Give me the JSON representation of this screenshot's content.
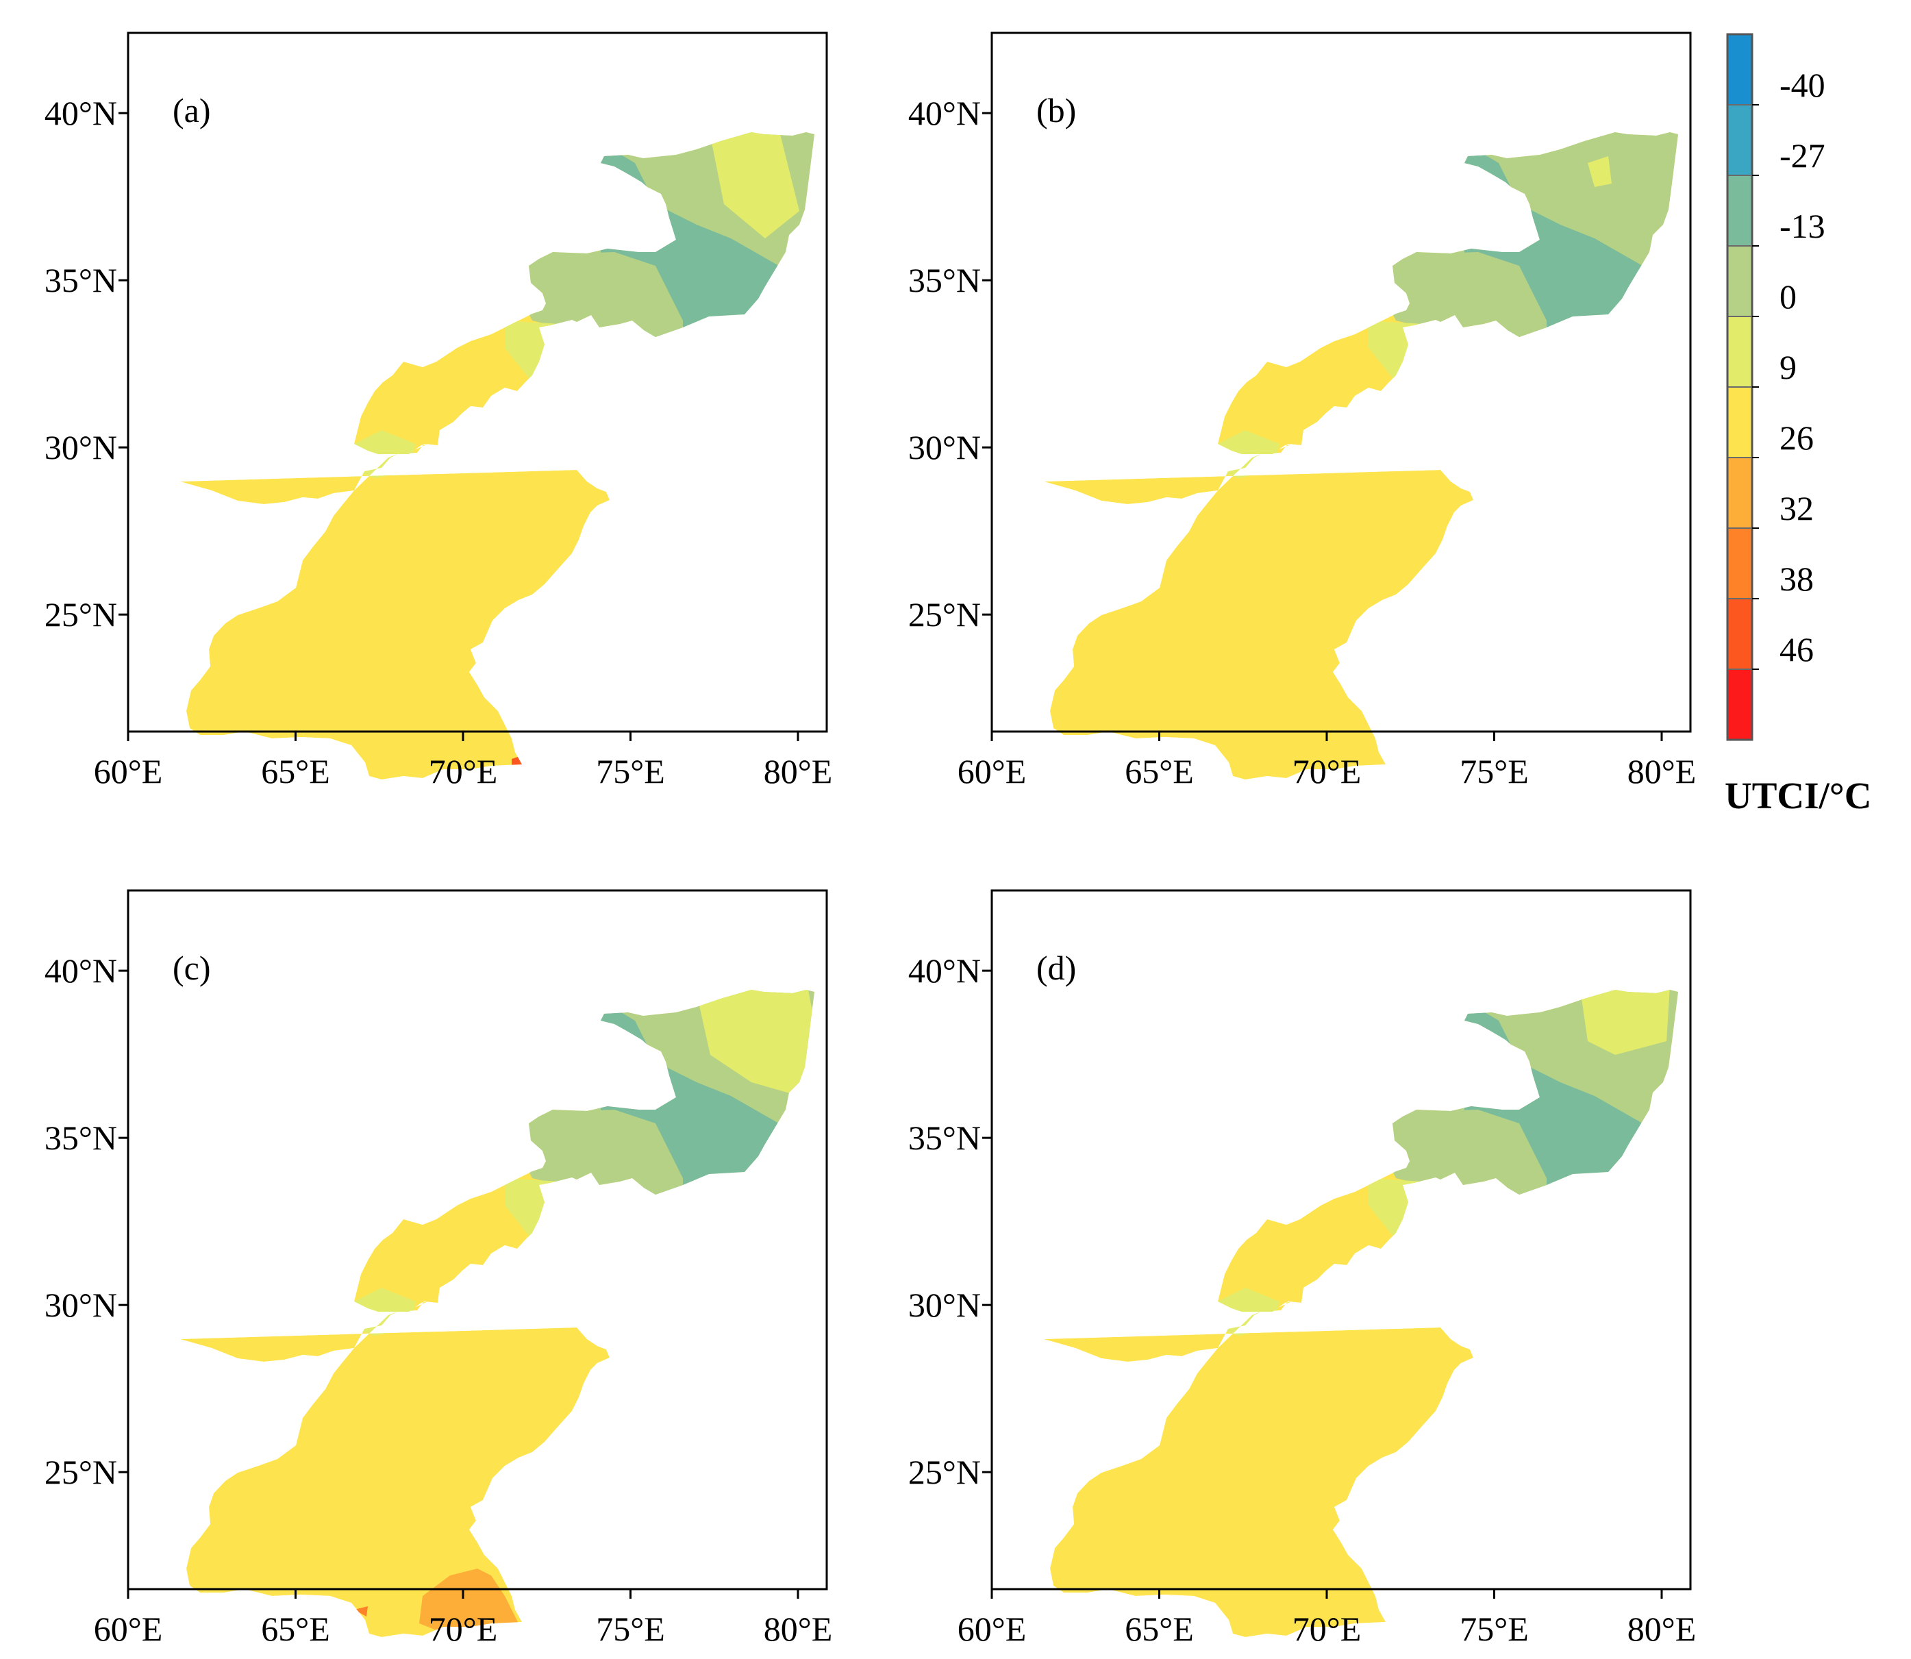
{
  "figure": {
    "colorbar": {
      "title": "UTCI/°C",
      "bins": [
        {
          "color": "#1a8fd0"
        },
        {
          "color": "#3aa6c3"
        },
        {
          "color": "#79bb9b"
        },
        {
          "color": "#b5d185"
        },
        {
          "color": "#e3ec6a"
        },
        {
          "color": "#fde44f"
        },
        {
          "color": "#fdae38"
        },
        {
          "color": "#fd8228"
        },
        {
          "color": "#fd5720"
        },
        {
          "color": "#fd1a1a"
        }
      ],
      "boundaries": [
        "-40",
        "-27",
        "-13",
        "0",
        "9",
        "26",
        "32",
        "38",
        "46"
      ]
    },
    "axes": {
      "lon_range": [
        60,
        80
      ],
      "lat_range": [
        21.5,
        42.4
      ],
      "x_ticks": [
        {
          "value": 60,
          "label": "60°E"
        },
        {
          "value": 65,
          "label": "65°E"
        },
        {
          "value": 70,
          "label": "70°E"
        },
        {
          "value": 75,
          "label": "75°E"
        },
        {
          "value": 80,
          "label": "80°E"
        }
      ],
      "y_ticks": [
        {
          "value": 25,
          "label": "25°N"
        },
        {
          "value": 30,
          "label": "30°N"
        },
        {
          "value": 35,
          "label": "35°N"
        },
        {
          "value": 40,
          "label": "40°N"
        }
      ]
    },
    "panels": [
      {
        "label": "(a)"
      },
      {
        "label": "(b)"
      },
      {
        "label": "(c)"
      },
      {
        "label": "(d)"
      }
    ]
  }
}
